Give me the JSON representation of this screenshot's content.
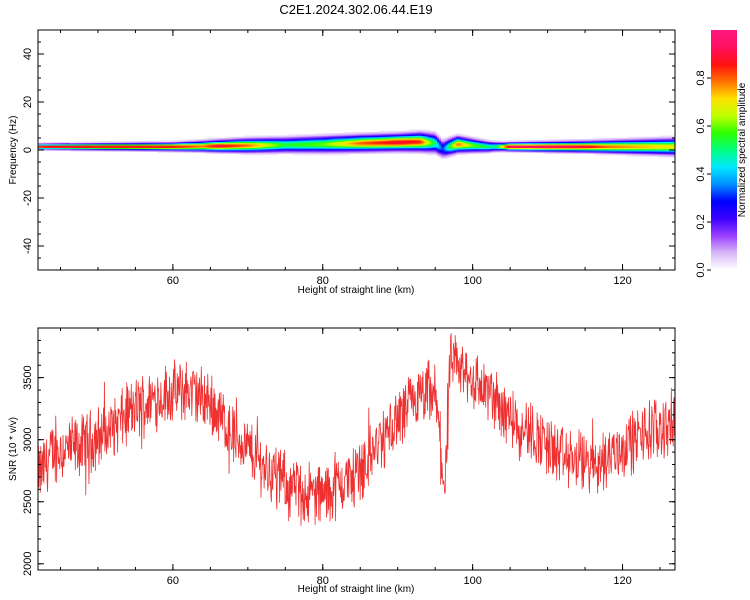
{
  "chart_data": [
    {
      "type": "heatmap",
      "title": "C2E1.2024.302.06.44.E19",
      "xlabel": "Height of straight line (km)",
      "ylabel": "Frequency (Hz)",
      "xlim": [
        42,
        127
      ],
      "ylim": [
        -50,
        50
      ],
      "x_ticks": [
        60,
        80,
        100,
        120
      ],
      "y_ticks": [
        -40,
        -20,
        0,
        20,
        40
      ],
      "colorbar": {
        "label": "Normalized spectral amplitude",
        "range": [
          0,
          1
        ],
        "ticks": [
          "0.0",
          "0.2",
          "0.4",
          "0.6",
          "0.8"
        ],
        "colors": [
          "#ffffff",
          "#d8b8f8",
          "#9a40ff",
          "#3a00ff",
          "#0000ff",
          "#0090ff",
          "#00e8ff",
          "#00ff80",
          "#30ff00",
          "#c0ff00",
          "#ffe000",
          "#ff7000",
          "#ff1010",
          "#ff1060",
          "#ff1880"
        ]
      },
      "band": {
        "center_hz": [
          [
            42,
            1.5
          ],
          [
            60,
            1.5
          ],
          [
            70,
            2
          ],
          [
            80,
            2.5
          ],
          [
            86,
            3
          ],
          [
            93,
            3.5
          ],
          [
            95,
            3
          ],
          [
            96,
            0.5
          ],
          [
            98,
            2.5
          ],
          [
            100,
            2
          ],
          [
            102,
            1.5
          ],
          [
            104,
            1.5
          ],
          [
            127,
            1.5
          ]
        ],
        "halfwidth_hz": [
          [
            42,
            1
          ],
          [
            60,
            1.5
          ],
          [
            70,
            2.5
          ],
          [
            80,
            3
          ],
          [
            90,
            3
          ],
          [
            95,
            3.5
          ],
          [
            100,
            2.5
          ],
          [
            104,
            1.5
          ],
          [
            115,
            2
          ],
          [
            127,
            3
          ]
        ],
        "peak_amplitude": [
          [
            42,
            0.9
          ],
          [
            45,
            0.95
          ],
          [
            50,
            0.9
          ],
          [
            60,
            0.88
          ],
          [
            64,
            0.8
          ],
          [
            66,
            0.9
          ],
          [
            70,
            0.8
          ],
          [
            75,
            0.55
          ],
          [
            80,
            0.6
          ],
          [
            85,
            0.8
          ],
          [
            90,
            0.9
          ],
          [
            93,
            0.85
          ],
          [
            95,
            0.5
          ],
          [
            96,
            0.3
          ],
          [
            98,
            0.8
          ],
          [
            100,
            0.6
          ],
          [
            103,
            0.5
          ],
          [
            105,
            0.95
          ],
          [
            110,
            0.95
          ],
          [
            115,
            0.9
          ],
          [
            118,
            0.8
          ],
          [
            122,
            0.75
          ],
          [
            127,
            0.7
          ]
        ]
      }
    },
    {
      "type": "line",
      "xlabel": "Height of straight line (km)",
      "ylabel": "SNR (10 * v/v)",
      "xlim": [
        42,
        127
      ],
      "ylim": [
        1950,
        3900
      ],
      "x_ticks": [
        60,
        80,
        100,
        120
      ],
      "y_ticks": [
        2000,
        2500,
        3000,
        3500
      ],
      "line_color": "#ee3030",
      "trend": [
        [
          42,
          2700
        ],
        [
          44,
          2900
        ],
        [
          48,
          2950
        ],
        [
          52,
          3100
        ],
        [
          55,
          3250
        ],
        [
          58,
          3350
        ],
        [
          62,
          3400
        ],
        [
          65,
          3300
        ],
        [
          68,
          3050
        ],
        [
          72,
          2800
        ],
        [
          76,
          2600
        ],
        [
          80,
          2550
        ],
        [
          84,
          2700
        ],
        [
          88,
          3000
        ],
        [
          92,
          3300
        ],
        [
          95,
          3350
        ],
        [
          96.3,
          2600
        ],
        [
          97,
          3600
        ],
        [
          100,
          3500
        ],
        [
          104,
          3250
        ],
        [
          108,
          3050
        ],
        [
          112,
          2850
        ],
        [
          116,
          2800
        ],
        [
          119,
          2900
        ],
        [
          123,
          3050
        ],
        [
          127,
          3150
        ]
      ],
      "noise_amplitude": 220
    }
  ]
}
